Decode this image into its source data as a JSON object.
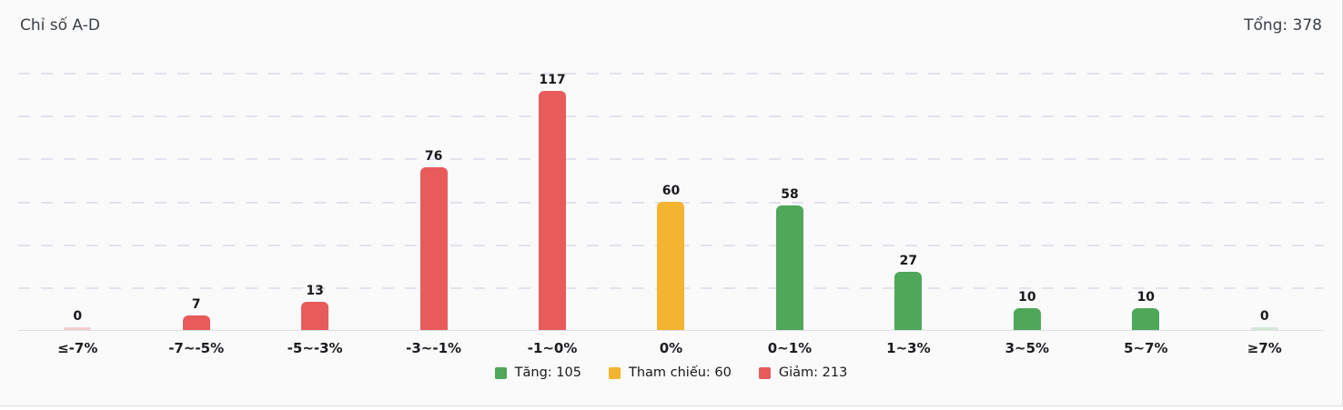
{
  "header": {
    "title": "Chỉ số A-D",
    "total": "Tổng: 378"
  },
  "chart_data": {
    "type": "bar",
    "title": "Chỉ số A-D",
    "categories": [
      "≤-7%",
      "-7~-5%",
      "-5~-3%",
      "-3~-1%",
      "-1~0%",
      "0%",
      "0~1%",
      "1~3%",
      "3~5%",
      "5~7%",
      "≥7%"
    ],
    "values": [
      0,
      7,
      13,
      76,
      117,
      60,
      58,
      27,
      10,
      10,
      0
    ],
    "groups": [
      "down",
      "down",
      "down",
      "down",
      "down",
      "ref",
      "up",
      "up",
      "up",
      "up",
      "up"
    ],
    "ylim": [
      0,
      120
    ],
    "gridline_step": 20,
    "grid": true,
    "xlabel": "",
    "ylabel": "",
    "legend_position": "bottom",
    "legend": [
      {
        "label": "Tăng: 105",
        "group": "up"
      },
      {
        "label": "Tham chiếu: 60",
        "group": "ref"
      },
      {
        "label": "Giảm: 213",
        "group": "down"
      }
    ],
    "total_label": "Tổng: 378",
    "colors": {
      "up": "#4fa75a",
      "ref": "#f3b42f",
      "down": "#e85b5b",
      "up_faded": "#d5e8d8",
      "down_faded": "#f5cdcd"
    }
  }
}
